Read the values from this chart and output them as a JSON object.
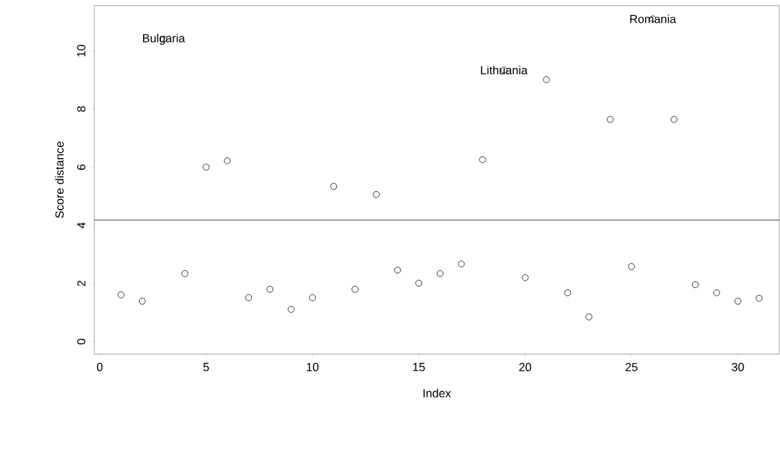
{
  "chart_data": {
    "type": "scatter",
    "xlabel": "Index",
    "ylabel": "Score distance",
    "x": [
      1,
      2,
      3,
      4,
      5,
      6,
      7,
      8,
      9,
      10,
      11,
      12,
      13,
      14,
      15,
      16,
      17,
      18,
      19,
      20,
      21,
      22,
      23,
      24,
      25,
      26,
      27,
      28,
      29,
      30,
      31
    ],
    "values": [
      1.61,
      1.39,
      10.4,
      2.34,
      6.0,
      6.22,
      1.51,
      1.8,
      1.11,
      1.51,
      5.34,
      1.8,
      5.06,
      2.46,
      2.01,
      2.34,
      2.67,
      6.26,
      9.34,
      2.2,
      9.01,
      1.68,
      0.85,
      7.64,
      2.58,
      11.1,
      7.64,
      1.96,
      1.68,
      1.39,
      1.49
    ],
    "color": "#000000",
    "marker": "circle",
    "grid": false,
    "xlim": [
      -0.26,
      31.95
    ],
    "ylim": [
      -0.43,
      11.56
    ],
    "xticks": [
      0,
      5,
      10,
      15,
      20,
      25,
      30
    ],
    "yticks": [
      0,
      2,
      4,
      6,
      8,
      10
    ],
    "ref_lines": [
      {
        "axis": "y",
        "value": 4.18,
        "color": "#000000"
      }
    ],
    "annotations": [
      {
        "text": "Bulgaria",
        "x": 3,
        "y": 10.4
      },
      {
        "text": "Lithuania",
        "x": 19,
        "y": 9.34
      },
      {
        "text": "Romania",
        "x": 26,
        "y": 11.1
      }
    ]
  }
}
